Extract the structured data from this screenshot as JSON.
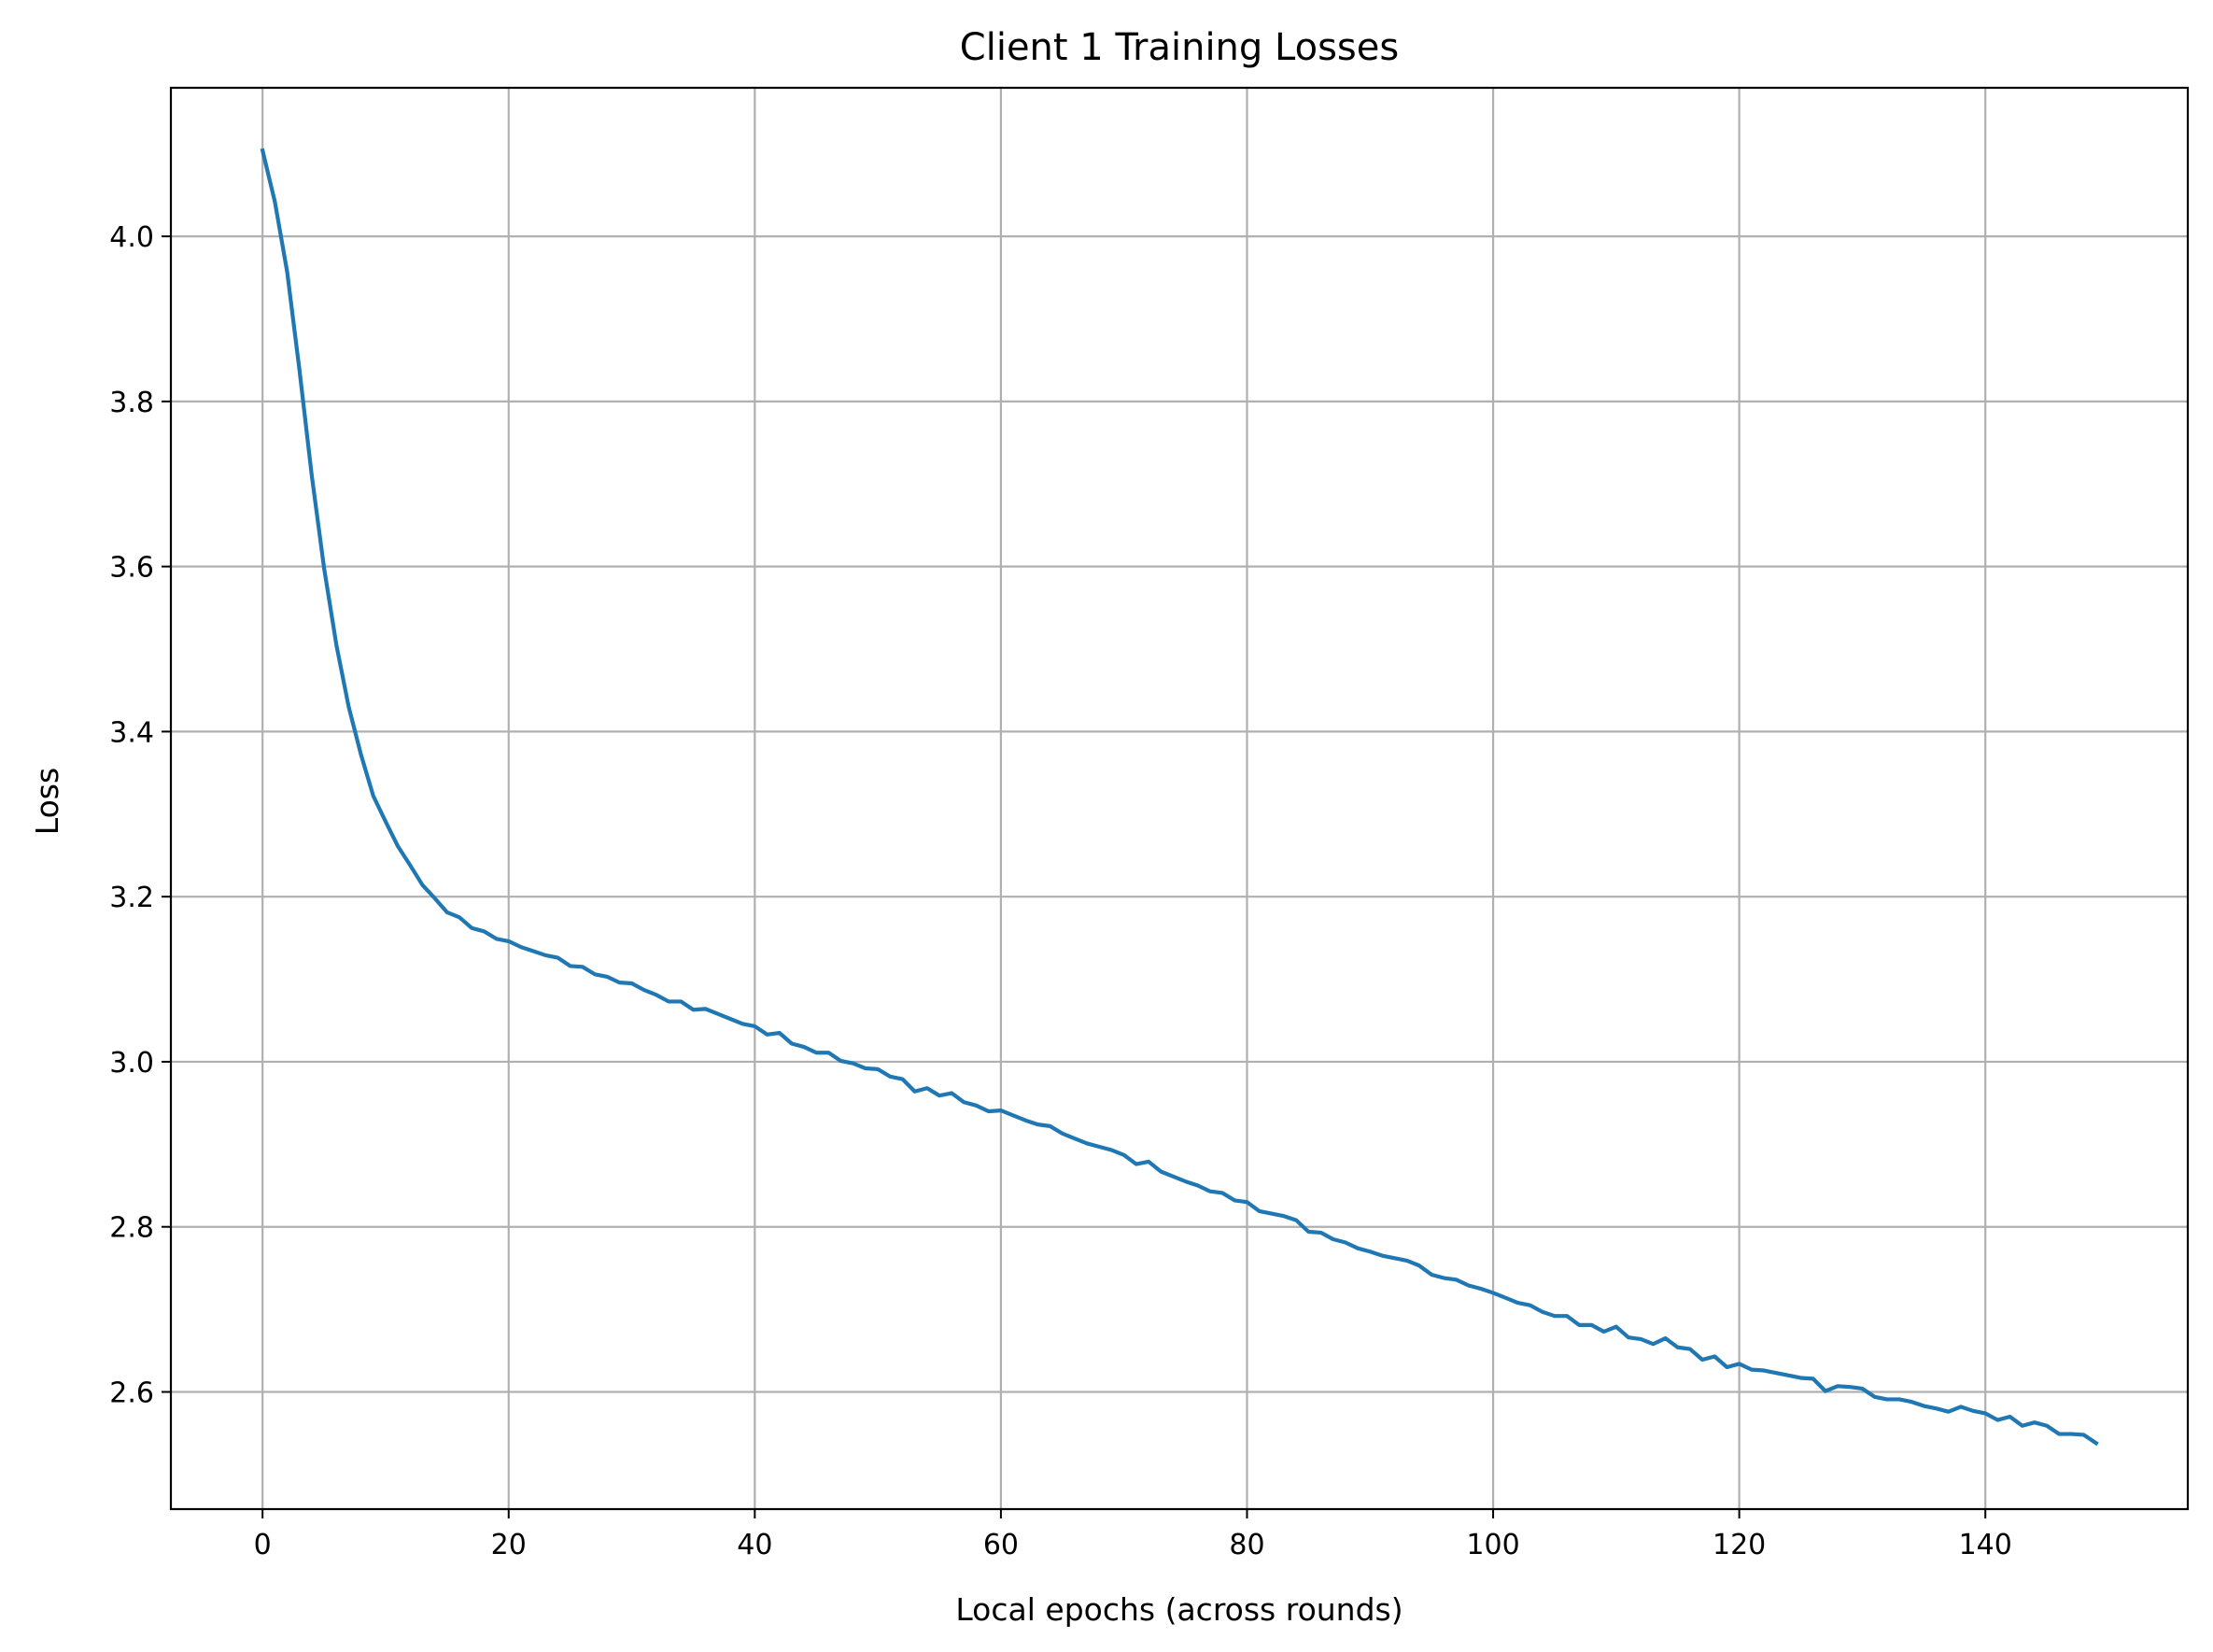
{
  "chart_data": {
    "type": "line",
    "title": "Client 1 Training Losses",
    "xlabel": "Local epochs (across rounds)",
    "ylabel": "Loss",
    "xlim": [
      -7.45,
      156.45
    ],
    "ylim": [
      2.458,
      4.18
    ],
    "x_ticks": [
      0,
      20,
      40,
      60,
      80,
      100,
      120,
      140
    ],
    "x_tick_labels": [
      "0",
      "20",
      "40",
      "60",
      "80",
      "100",
      "120",
      "140"
    ],
    "y_ticks": [
      2.6,
      2.8,
      3.0,
      3.2,
      3.4,
      3.6,
      3.8,
      4.0
    ],
    "y_tick_labels": [
      "2.6",
      "2.8",
      "3.0",
      "3.2",
      "3.4",
      "3.6",
      "3.8",
      "4.0"
    ],
    "grid": true,
    "colors": {
      "line": "#1f77b4",
      "grid": "#b0b0b0",
      "frame": "#000000"
    },
    "series": [
      {
        "x_start": 0,
        "x_step": 1,
        "values": [
          4.104,
          4.042,
          3.957,
          3.838,
          3.71,
          3.598,
          3.505,
          3.43,
          3.372,
          3.322,
          3.291,
          3.261,
          3.238,
          3.214,
          3.198,
          3.181,
          3.175,
          3.162,
          3.158,
          3.149,
          3.146,
          3.139,
          3.134,
          3.129,
          3.126,
          3.116,
          3.115,
          3.106,
          3.103,
          3.096,
          3.095,
          3.087,
          3.081,
          3.073,
          3.073,
          3.063,
          3.064,
          3.058,
          3.052,
          3.046,
          3.043,
          3.033,
          3.035,
          3.022,
          3.018,
          3.011,
          3.011,
          3.001,
          2.998,
          2.992,
          2.991,
          2.982,
          2.979,
          2.964,
          2.968,
          2.959,
          2.962,
          2.951,
          2.947,
          2.94,
          2.941,
          2.935,
          2.929,
          2.924,
          2.922,
          2.913,
          2.907,
          2.901,
          2.897,
          2.893,
          2.887,
          2.876,
          2.879,
          2.867,
          2.861,
          2.855,
          2.85,
          2.843,
          2.841,
          2.832,
          2.83,
          2.819,
          2.816,
          2.813,
          2.808,
          2.794,
          2.793,
          2.785,
          2.781,
          2.774,
          2.77,
          2.765,
          2.762,
          2.759,
          2.753,
          2.742,
          2.738,
          2.736,
          2.729,
          2.725,
          2.72,
          2.714,
          2.708,
          2.705,
          2.697,
          2.692,
          2.692,
          2.681,
          2.681,
          2.673,
          2.679,
          2.666,
          2.664,
          2.658,
          2.665,
          2.654,
          2.652,
          2.639,
          2.643,
          2.63,
          2.634,
          2.627,
          2.626,
          2.623,
          2.62,
          2.617,
          2.616,
          2.601,
          2.607,
          2.606,
          2.604,
          2.594,
          2.591,
          2.591,
          2.588,
          2.583,
          2.58,
          2.576,
          2.582,
          2.577,
          2.574,
          2.566,
          2.57,
          2.559,
          2.563,
          2.559,
          2.549,
          2.549,
          2.548,
          2.538
        ]
      }
    ]
  }
}
